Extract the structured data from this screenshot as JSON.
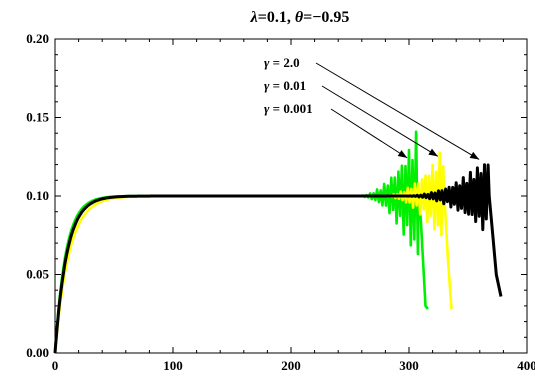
{
  "chart_data": {
    "type": "line",
    "title": "λ=0.1, θ=−0.95",
    "title_parts": {
      "lambda_sym": "λ",
      "lambda_val": "=0.1, ",
      "theta_sym": "θ",
      "theta_val": "=−0.95"
    },
    "xlabel": "",
    "ylabel": "",
    "xlim": [
      0,
      400
    ],
    "ylim": [
      0,
      0.2
    ],
    "x_ticks": [
      0,
      100,
      200,
      300,
      400
    ],
    "x_tick_labels": [
      "0",
      "100",
      "200",
      "300",
      "400"
    ],
    "y_ticks": [
      0,
      0.05,
      0.1,
      0.15,
      0.2
    ],
    "y_tick_labels": [
      "0.00",
      "0.05",
      "0.10",
      "0.15",
      "0.20"
    ],
    "grid": false,
    "legend": "none",
    "annotations": [
      {
        "symbol": "γ",
        "text": " = 2.0",
        "target": [
          362,
          0.122
        ]
      },
      {
        "symbol": "γ",
        "text": " = 0.01",
        "target": [
          327,
          0.124
        ]
      },
      {
        "symbol": "γ",
        "text": " = 0.001",
        "target": [
          301,
          0.123
        ]
      }
    ],
    "series": [
      {
        "color": "#00ee00",
        "rise_rate": 0.11,
        "plateau": 0.1,
        "oscillation": {
          "start": 255,
          "end": 308,
          "max_amplitude": 0.045,
          "period": 3
        },
        "tail": [
          [
            308,
            0.1
          ],
          [
            310,
            0.085
          ],
          [
            314,
            0.03
          ],
          [
            316,
            0.028
          ]
        ]
      },
      {
        "color": "#ffff00",
        "rise_rate": 0.085,
        "plateau": 0.1,
        "oscillation": {
          "start": 275,
          "end": 330,
          "max_amplitude": 0.033,
          "period": 3
        },
        "tail": [
          [
            330,
            0.1
          ],
          [
            333,
            0.06
          ],
          [
            336,
            0.028
          ]
        ]
      },
      {
        "color": "#000000",
        "rise_rate": 0.1,
        "plateau": 0.1,
        "oscillation": {
          "start": 295,
          "end": 368,
          "max_amplitude": 0.026,
          "period": 3
        },
        "tail": [
          [
            368,
            0.1
          ],
          [
            371,
            0.075
          ],
          [
            374,
            0.05
          ],
          [
            378,
            0.036
          ]
        ]
      }
    ]
  }
}
